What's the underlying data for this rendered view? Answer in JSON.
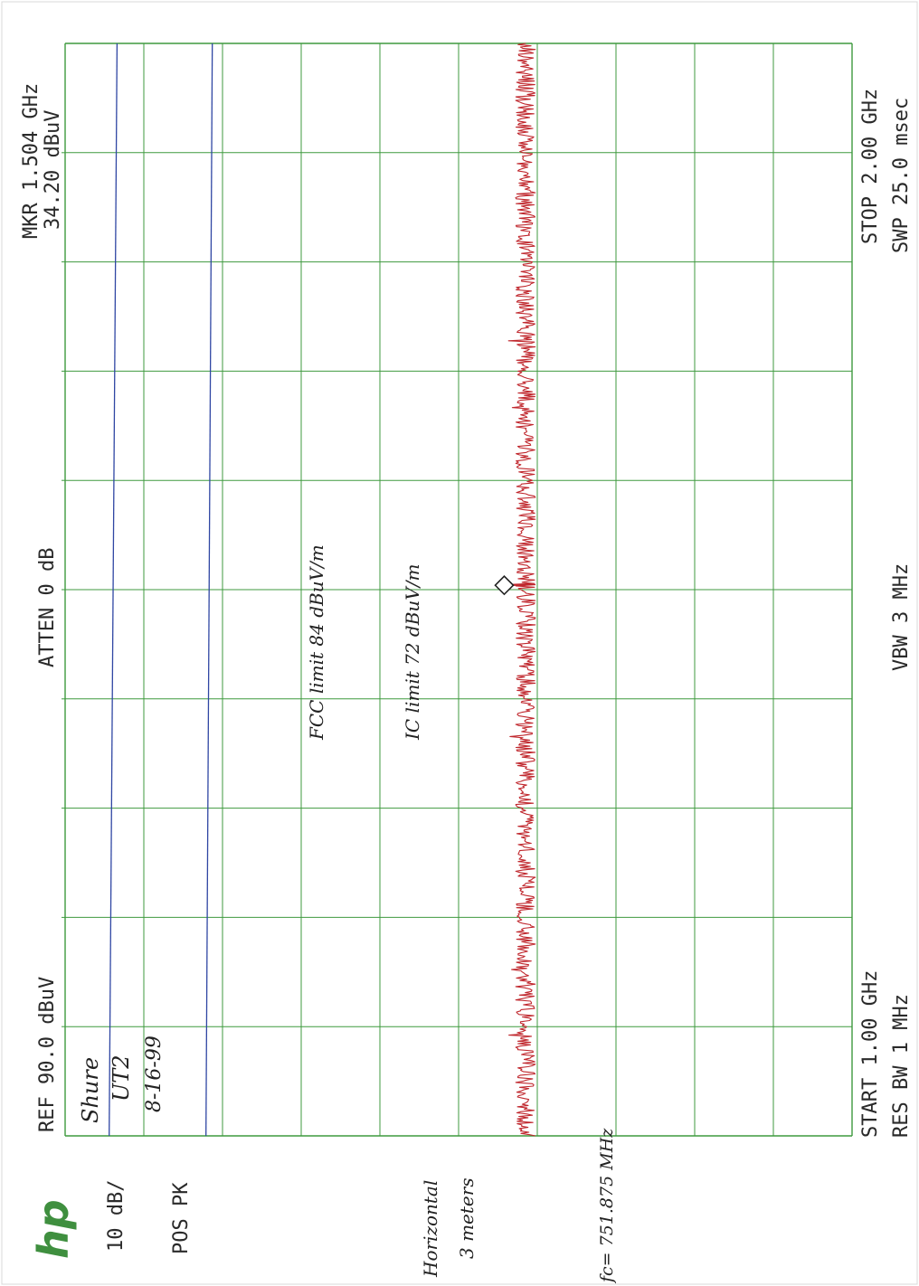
{
  "instrument": {
    "logo": "hp",
    "ref_level": "REF  90.0 dBuV",
    "atten": "ATTEN 0 dB",
    "marker_freq": "MKR 1.504 GHz",
    "marker_level": "34.20 dBuV",
    "scale": "10 dB/",
    "detector": "POS PK",
    "start": "START 1.00 GHz",
    "stop": "STOP 2.00 GHz",
    "res_bw": "RES BW 1 MHz",
    "vbw": "VBW 3 MHz",
    "sweep": "SWP 25.0 msec"
  },
  "notes": {
    "device_name": "Shure",
    "device_model": "UT2",
    "date": "8-16-99",
    "polarization": "Horizontal",
    "distance": "3 meters",
    "center_freq": "fc= 751.875 MHz",
    "fcc_limit": "FCC limit  84 dBuV/m",
    "ic_limit": "IC limit  72 dBuV/m"
  },
  "colors": {
    "grid": "#3f9a3f",
    "limit_lines": "#2f46a3",
    "trace": "#c0282e",
    "marker": "#222222",
    "logo": "#3f8f3f"
  },
  "chart_data": {
    "type": "line",
    "x_unit": "GHz",
    "y_unit": "dBuV",
    "xlim": [
      1.0,
      2.0
    ],
    "ylim": [
      -10,
      90
    ],
    "grid": true,
    "series": [
      {
        "name": "FCC limit",
        "x": [
          1.0,
          2.0
        ],
        "y": [
          84.4,
          83.4
        ]
      },
      {
        "name": "IC limit",
        "x": [
          1.0,
          2.0
        ],
        "y": [
          72.1,
          71.3
        ]
      },
      {
        "name": "trace",
        "noise_floor": 31.5,
        "noise_peak_to_peak": 2.5,
        "spike": {
          "x": 1.504,
          "y": 34.2
        }
      }
    ],
    "marker": {
      "x": 1.504,
      "y": 34.2
    }
  }
}
